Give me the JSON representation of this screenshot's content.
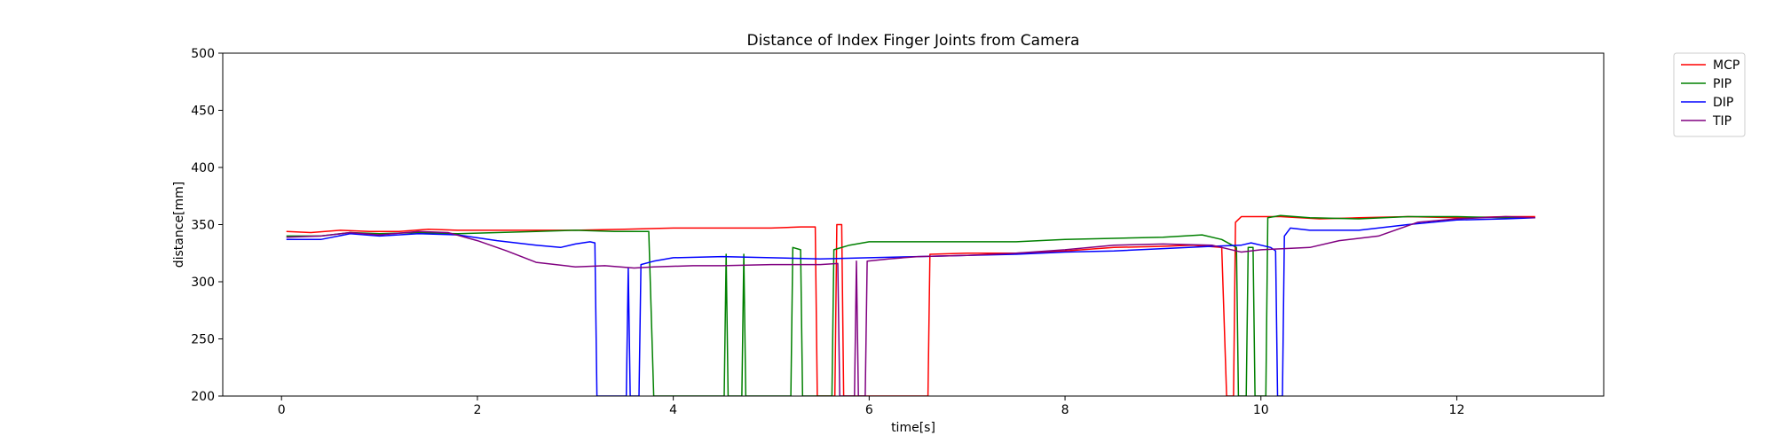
{
  "chart_data": {
    "type": "line",
    "title": "Distance of Index Finger Joints from Camera",
    "xlabel": "time[s]",
    "ylabel": "distance[mm]",
    "xlim": [
      -0.6,
      13.5
    ],
    "ylim": [
      200,
      500
    ],
    "xticks": [
      0,
      2,
      4,
      6,
      8,
      10,
      12
    ],
    "yticks": [
      200,
      250,
      300,
      350,
      400,
      450,
      500
    ],
    "grid": false,
    "legend_position": "outside-top-right",
    "series": [
      {
        "name": "MCP",
        "color": "#ff0000",
        "points": [
          [
            0.05,
            344
          ],
          [
            0.3,
            343
          ],
          [
            0.6,
            345
          ],
          [
            0.9,
            344
          ],
          [
            1.2,
            344
          ],
          [
            1.5,
            346
          ],
          [
            1.8,
            345
          ],
          [
            2.1,
            345
          ],
          [
            2.5,
            345
          ],
          [
            3.0,
            345
          ],
          [
            3.5,
            346
          ],
          [
            4.0,
            347
          ],
          [
            4.5,
            347
          ],
          [
            5.0,
            347
          ],
          [
            5.3,
            348
          ],
          [
            5.45,
            348
          ],
          [
            5.47,
            200
          ],
          [
            5.65,
            200
          ],
          [
            5.67,
            350
          ],
          [
            5.72,
            350
          ],
          [
            5.74,
            200
          ],
          [
            6.6,
            200
          ],
          [
            6.62,
            324
          ],
          [
            7.0,
            325
          ],
          [
            7.5,
            325
          ],
          [
            8.0,
            327
          ],
          [
            8.5,
            330
          ],
          [
            9.0,
            331
          ],
          [
            9.3,
            332
          ],
          [
            9.6,
            330
          ],
          [
            9.65,
            200
          ],
          [
            9.72,
            200
          ],
          [
            9.74,
            352
          ],
          [
            9.8,
            357
          ],
          [
            10.2,
            357
          ],
          [
            10.6,
            355
          ],
          [
            11.0,
            356
          ],
          [
            11.5,
            357
          ],
          [
            12.0,
            356
          ],
          [
            12.5,
            357
          ],
          [
            12.8,
            357
          ]
        ]
      },
      {
        "name": "PIP",
        "color": "#008000",
        "points": [
          [
            0.05,
            340
          ],
          [
            0.4,
            340
          ],
          [
            0.7,
            343
          ],
          [
            1.0,
            342
          ],
          [
            1.4,
            343
          ],
          [
            1.8,
            342
          ],
          [
            2.2,
            343
          ],
          [
            2.6,
            344
          ],
          [
            3.0,
            345
          ],
          [
            3.4,
            344
          ],
          [
            3.75,
            344
          ],
          [
            3.8,
            200
          ],
          [
            4.52,
            200
          ],
          [
            4.54,
            324
          ],
          [
            4.56,
            200
          ],
          [
            4.7,
            200
          ],
          [
            4.72,
            324
          ],
          [
            4.74,
            200
          ],
          [
            5.2,
            200
          ],
          [
            5.22,
            330
          ],
          [
            5.3,
            328
          ],
          [
            5.32,
            200
          ],
          [
            5.62,
            200
          ],
          [
            5.64,
            328
          ],
          [
            5.8,
            332
          ],
          [
            6.0,
            335
          ],
          [
            6.5,
            335
          ],
          [
            7.0,
            335
          ],
          [
            7.5,
            335
          ],
          [
            8.0,
            337
          ],
          [
            8.5,
            338
          ],
          [
            9.0,
            339
          ],
          [
            9.4,
            341
          ],
          [
            9.6,
            337
          ],
          [
            9.75,
            330
          ],
          [
            9.77,
            200
          ],
          [
            9.85,
            200
          ],
          [
            9.87,
            330
          ],
          [
            9.92,
            330
          ],
          [
            9.94,
            200
          ],
          [
            10.05,
            200
          ],
          [
            10.07,
            356
          ],
          [
            10.2,
            358
          ],
          [
            10.5,
            356
          ],
          [
            11.0,
            355
          ],
          [
            11.5,
            357
          ],
          [
            12.0,
            357
          ],
          [
            12.5,
            356
          ],
          [
            12.8,
            356
          ]
        ]
      },
      {
        "name": "DIP",
        "color": "#0000ff",
        "points": [
          [
            0.05,
            337
          ],
          [
            0.4,
            337
          ],
          [
            0.7,
            342
          ],
          [
            1.0,
            340
          ],
          [
            1.4,
            342
          ],
          [
            1.8,
            341
          ],
          [
            2.2,
            336
          ],
          [
            2.6,
            332
          ],
          [
            2.85,
            330
          ],
          [
            3.0,
            333
          ],
          [
            3.15,
            335
          ],
          [
            3.2,
            334
          ],
          [
            3.22,
            200
          ],
          [
            3.52,
            200
          ],
          [
            3.54,
            312
          ],
          [
            3.56,
            200
          ],
          [
            3.65,
            200
          ],
          [
            3.67,
            315
          ],
          [
            3.8,
            318
          ],
          [
            4.0,
            321
          ],
          [
            4.5,
            322
          ],
          [
            5.0,
            321
          ],
          [
            5.5,
            320
          ],
          [
            6.0,
            321
          ],
          [
            6.5,
            322
          ],
          [
            7.0,
            323
          ],
          [
            7.5,
            324
          ],
          [
            8.0,
            326
          ],
          [
            8.5,
            327
          ],
          [
            9.0,
            329
          ],
          [
            9.5,
            331
          ],
          [
            9.8,
            332
          ],
          [
            9.9,
            334
          ],
          [
            10.1,
            330
          ],
          [
            10.15,
            327
          ],
          [
            10.17,
            200
          ],
          [
            10.22,
            200
          ],
          [
            10.24,
            340
          ],
          [
            10.3,
            347
          ],
          [
            10.5,
            345
          ],
          [
            11.0,
            345
          ],
          [
            11.5,
            350
          ],
          [
            12.0,
            354
          ],
          [
            12.5,
            355
          ],
          [
            12.8,
            356
          ]
        ]
      },
      {
        "name": "TIP",
        "color": "#800080",
        "points": [
          [
            0.05,
            339
          ],
          [
            0.4,
            340
          ],
          [
            0.7,
            343
          ],
          [
            1.0,
            341
          ],
          [
            1.4,
            344
          ],
          [
            1.7,
            343
          ],
          [
            2.0,
            336
          ],
          [
            2.3,
            327
          ],
          [
            2.6,
            317
          ],
          [
            3.0,
            313
          ],
          [
            3.3,
            314
          ],
          [
            3.6,
            312
          ],
          [
            3.8,
            313
          ],
          [
            4.2,
            314
          ],
          [
            4.5,
            314
          ],
          [
            5.0,
            315
          ],
          [
            5.5,
            315
          ],
          [
            5.68,
            316
          ],
          [
            5.7,
            200
          ],
          [
            5.85,
            200
          ],
          [
            5.87,
            318
          ],
          [
            5.89,
            200
          ],
          [
            5.96,
            200
          ],
          [
            5.98,
            318
          ],
          [
            6.2,
            320
          ],
          [
            6.5,
            322
          ],
          [
            7.0,
            323
          ],
          [
            7.5,
            325
          ],
          [
            8.0,
            328
          ],
          [
            8.5,
            332
          ],
          [
            9.0,
            333
          ],
          [
            9.5,
            332
          ],
          [
            9.8,
            326
          ],
          [
            10.0,
            328
          ],
          [
            10.5,
            330
          ],
          [
            10.8,
            336
          ],
          [
            11.2,
            340
          ],
          [
            11.6,
            352
          ],
          [
            12.0,
            355
          ],
          [
            12.5,
            357
          ],
          [
            12.8,
            356
          ]
        ]
      }
    ]
  }
}
